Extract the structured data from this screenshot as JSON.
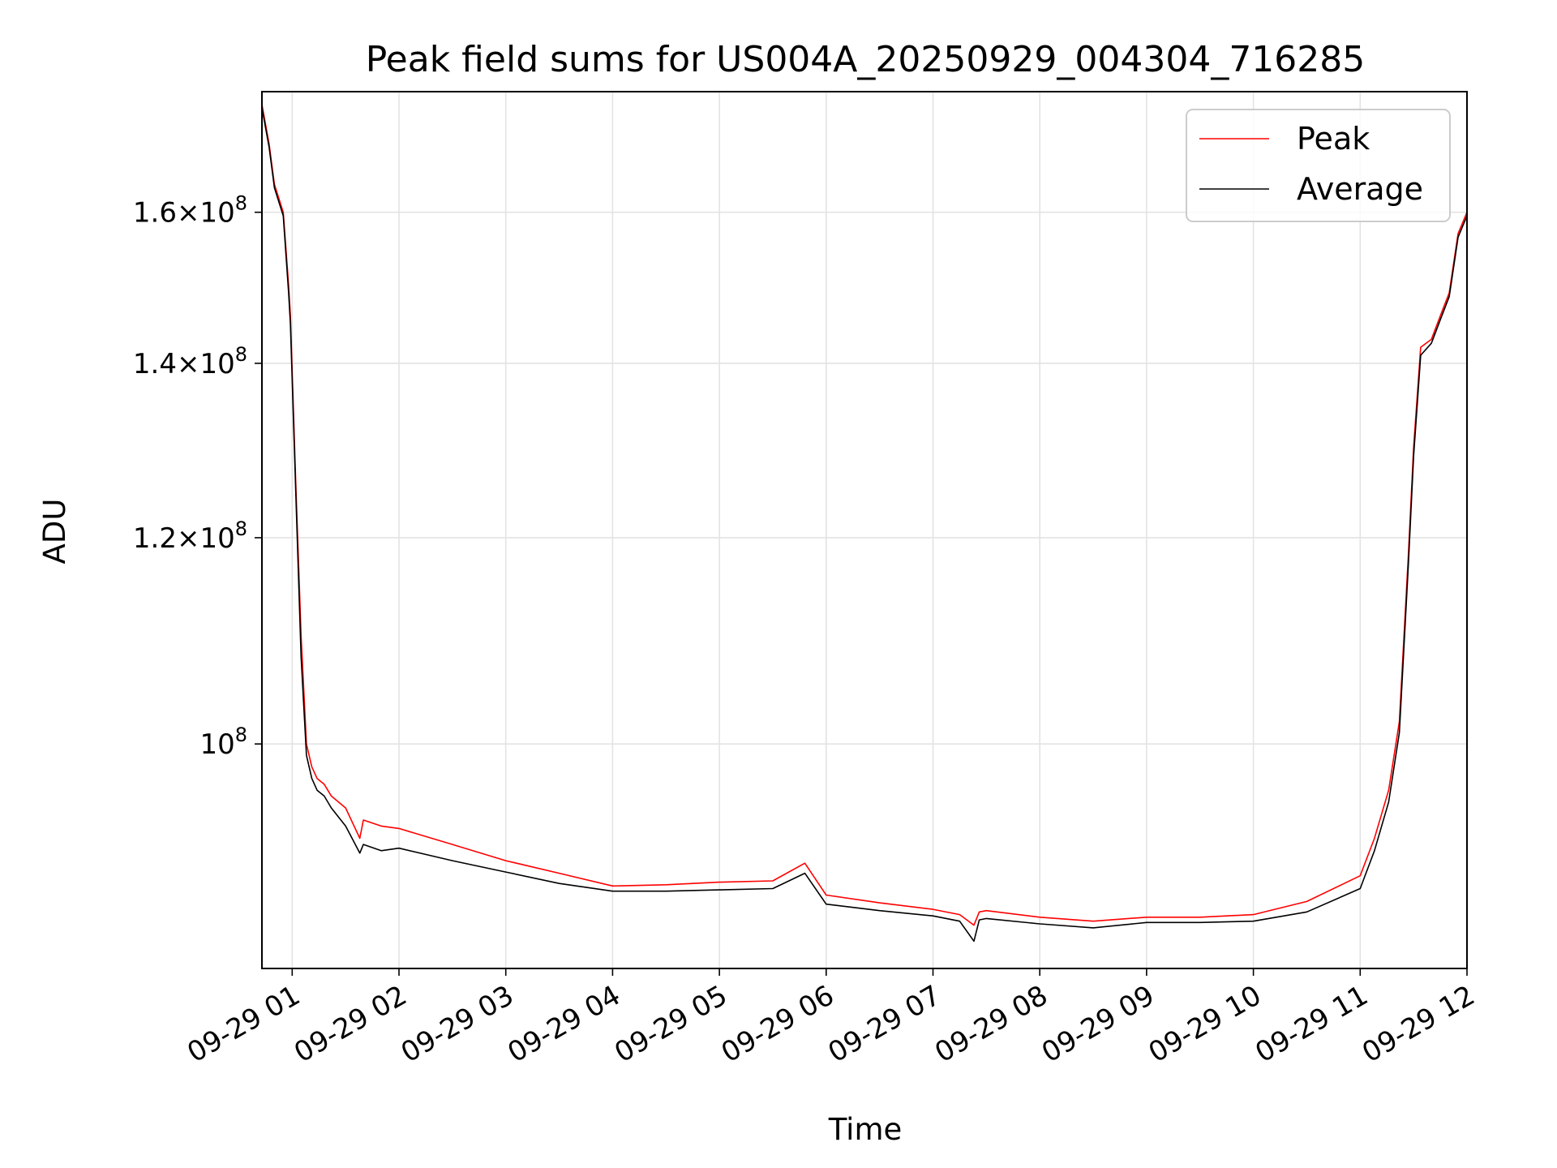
{
  "chart_data": {
    "type": "line",
    "title": "Peak field sums for US004A_20250929_004304_716285",
    "xlabel": "Time",
    "ylabel": "ADU",
    "y_scale": "log",
    "xlim": [
      "2025-09-29 00:43",
      "2025-09-29 12:00"
    ],
    "ylim": [
      82000000,
      178000000
    ],
    "grid": true,
    "legend_position": "top-right",
    "x_ticks": [
      {
        "t": "2025-09-29 01:00",
        "label": "09-29 01"
      },
      {
        "t": "2025-09-29 02:00",
        "label": "09-29 02"
      },
      {
        "t": "2025-09-29 03:00",
        "label": "09-29 03"
      },
      {
        "t": "2025-09-29 04:00",
        "label": "09-29 04"
      },
      {
        "t": "2025-09-29 05:00",
        "label": "09-29 05"
      },
      {
        "t": "2025-09-29 06:00",
        "label": "09-29 06"
      },
      {
        "t": "2025-09-29 07:00",
        "label": "09-29 07"
      },
      {
        "t": "2025-09-29 08:00",
        "label": "09-29 08"
      },
      {
        "t": "2025-09-29 09:00",
        "label": "09-29 09"
      },
      {
        "t": "2025-09-29 10:00",
        "label": "09-29 10"
      },
      {
        "t": "2025-09-29 11:00",
        "label": "09-29 11"
      },
      {
        "t": "2025-09-29 12:00",
        "label": "09-29 12"
      }
    ],
    "y_ticks": [
      {
        "v": 100000000,
        "mantissa": "",
        "base": "10",
        "exp": "8"
      },
      {
        "v": 120000000,
        "mantissa": "1.2×",
        "base": "10",
        "exp": "8"
      },
      {
        "v": 140000000,
        "mantissa": "1.4×",
        "base": "10",
        "exp": "8"
      },
      {
        "v": 160000000,
        "mantissa": "1.6×",
        "base": "10",
        "exp": "8"
      }
    ],
    "series": [
      {
        "name": "Peak",
        "color": "#ff0000",
        "x": [
          "2025-09-29 00:43",
          "2025-09-29 00:47",
          "2025-09-29 00:50",
          "2025-09-29 00:55",
          "2025-09-29 00:58",
          "2025-09-29 00:59",
          "2025-09-29 01:02",
          "2025-09-29 01:05",
          "2025-09-29 01:08",
          "2025-09-29 01:11",
          "2025-09-29 01:14",
          "2025-09-29 01:18",
          "2025-09-29 01:22",
          "2025-09-29 01:30",
          "2025-09-29 01:38",
          "2025-09-29 01:40",
          "2025-09-29 01:50",
          "2025-09-29 02:00",
          "2025-09-29 02:30",
          "2025-09-29 03:00",
          "2025-09-29 03:30",
          "2025-09-29 04:00",
          "2025-09-29 04:30",
          "2025-09-29 05:00",
          "2025-09-29 05:30",
          "2025-09-29 05:48",
          "2025-09-29 06:00",
          "2025-09-29 06:30",
          "2025-09-29 07:00",
          "2025-09-29 07:15",
          "2025-09-29 07:23",
          "2025-09-29 07:26",
          "2025-09-29 07:30",
          "2025-09-29 08:00",
          "2025-09-29 08:30",
          "2025-09-29 09:00",
          "2025-09-29 09:30",
          "2025-09-29 10:00",
          "2025-09-29 10:30",
          "2025-09-29 11:00",
          "2025-09-29 11:08",
          "2025-09-29 11:16",
          "2025-09-29 11:22",
          "2025-09-29 11:27",
          "2025-09-29 11:30",
          "2025-09-29 11:34",
          "2025-09-29 11:40",
          "2025-09-29 11:45",
          "2025-09-29 11:50",
          "2025-09-29 11:55",
          "2025-09-29 12:00"
        ],
        "values": [
          176000000,
          170000000,
          164000000,
          160000000,
          150000000,
          146000000,
          126000000,
          110000000,
          100000000,
          98000000,
          97000000,
          96500000,
          95500000,
          94500000,
          92000000,
          93500000,
          93000000,
          92800000,
          91500000,
          90200000,
          89200000,
          88200000,
          88300000,
          88500000,
          88600000,
          90000000,
          87500000,
          86900000,
          86400000,
          86000000,
          85200000,
          86200000,
          86300000,
          85800000,
          85500000,
          85800000,
          85800000,
          86000000,
          87000000,
          89000000,
          92000000,
          96000000,
          102000000,
          118000000,
          130000000,
          142000000,
          143000000,
          146000000,
          149000000,
          157000000,
          160000000
        ]
      },
      {
        "name": "Average",
        "color": "#000000",
        "x": [
          "2025-09-29 00:43",
          "2025-09-29 00:47",
          "2025-09-29 00:50",
          "2025-09-29 00:55",
          "2025-09-29 00:58",
          "2025-09-29 00:59",
          "2025-09-29 01:02",
          "2025-09-29 01:05",
          "2025-09-29 01:08",
          "2025-09-29 01:11",
          "2025-09-29 01:14",
          "2025-09-29 01:18",
          "2025-09-29 01:22",
          "2025-09-29 01:30",
          "2025-09-29 01:38",
          "2025-09-29 01:40",
          "2025-09-29 01:50",
          "2025-09-29 02:00",
          "2025-09-29 02:30",
          "2025-09-29 03:00",
          "2025-09-29 03:30",
          "2025-09-29 04:00",
          "2025-09-29 04:30",
          "2025-09-29 05:00",
          "2025-09-29 05:30",
          "2025-09-29 05:48",
          "2025-09-29 06:00",
          "2025-09-29 06:30",
          "2025-09-29 07:00",
          "2025-09-29 07:15",
          "2025-09-29 07:23",
          "2025-09-29 07:26",
          "2025-09-29 07:30",
          "2025-09-29 08:00",
          "2025-09-29 08:30",
          "2025-09-29 09:00",
          "2025-09-29 09:30",
          "2025-09-29 10:00",
          "2025-09-29 10:30",
          "2025-09-29 11:00",
          "2025-09-29 11:08",
          "2025-09-29 11:16",
          "2025-09-29 11:22",
          "2025-09-29 11:27",
          "2025-09-29 11:30",
          "2025-09-29 11:34",
          "2025-09-29 11:40",
          "2025-09-29 11:45",
          "2025-09-29 11:50",
          "2025-09-29 11:55",
          "2025-09-29 12:00"
        ],
        "values": [
          175500000,
          169500000,
          163500000,
          159500000,
          149000000,
          145000000,
          125000000,
          108000000,
          99000000,
          97000000,
          96000000,
          95500000,
          94500000,
          93000000,
          90800000,
          91500000,
          91000000,
          91200000,
          90200000,
          89300000,
          88400000,
          87800000,
          87800000,
          87900000,
          88000000,
          89200000,
          86800000,
          86300000,
          85900000,
          85500000,
          84000000,
          85600000,
          85700000,
          85300000,
          85000000,
          85400000,
          85400000,
          85500000,
          86200000,
          88000000,
          91000000,
          95000000,
          101000000,
          117000000,
          129000000,
          141000000,
          142500000,
          145500000,
          148500000,
          156500000,
          159500000
        ]
      }
    ]
  }
}
